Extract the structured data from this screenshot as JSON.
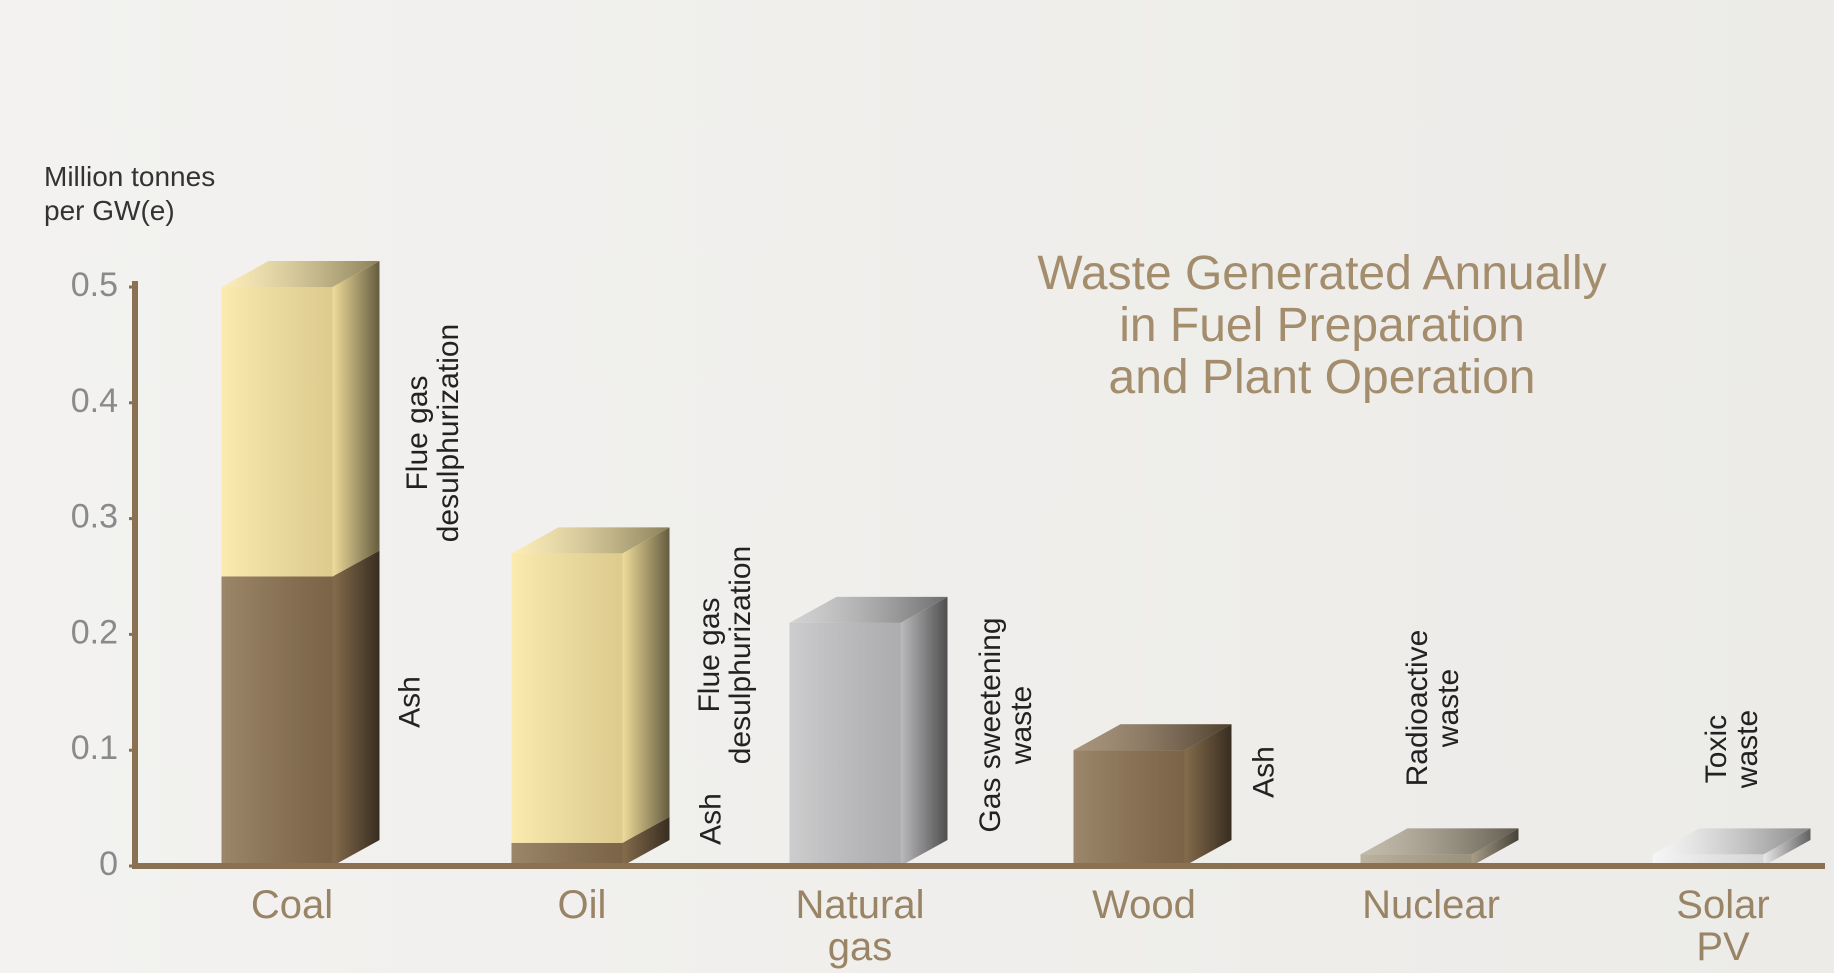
{
  "chart_data": {
    "type": "stacked_bar_3d",
    "title": [
      "Waste Generated Annually",
      "in Fuel Preparation",
      "and Plant Operation"
    ],
    "y_axis_label": [
      "Million tonnes",
      "per GW(e)"
    ],
    "categories": [
      "Coal",
      "Oil",
      "Natural gas",
      "Wood",
      "Nuclear",
      "Solar PV"
    ],
    "series": [
      {
        "name": "Ash",
        "color": "#8b7150",
        "values": [
          0.25,
          0.02,
          null,
          0.1,
          null,
          null
        ]
      },
      {
        "name": "Flue gas desulphurization",
        "color": "#fbe7a1",
        "values": [
          0.25,
          0.25,
          null,
          null,
          null,
          null
        ]
      },
      {
        "name": "Gas sweetening waste",
        "color": "#c4c4c6",
        "values": [
          null,
          null,
          0.21,
          null,
          null,
          null
        ]
      },
      {
        "name": "Radioactive waste",
        "color": "#b0a58e",
        "values": [
          null,
          null,
          null,
          null,
          0.01,
          null
        ]
      },
      {
        "name": "Toxic waste",
        "color": "#f4f4f4",
        "values": [
          null,
          null,
          null,
          null,
          null,
          0.01
        ]
      }
    ],
    "ylim": [
      0,
      0.5
    ],
    "yticks": [
      0,
      0.1,
      0.2,
      0.3,
      0.4,
      0.5
    ],
    "grid": false
  }
}
